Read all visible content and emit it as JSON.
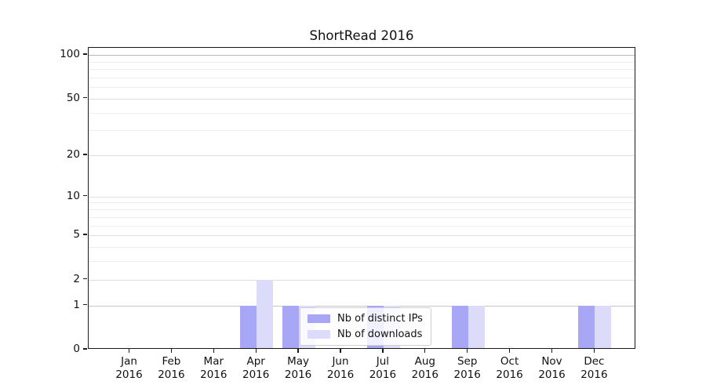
{
  "title": "ShortRead 2016",
  "colors": {
    "distinct_ips": "#a7a7f5",
    "downloads": "#dcdcfa",
    "grid_minor": "#eeeeee",
    "grid_major": "#dedede",
    "grid_unit_line": "#c4c4c4",
    "grid_top_line": "#b8b8b8",
    "axis": "#1a1a1a"
  },
  "legend": {
    "items": [
      {
        "label": "Nb of distinct IPs",
        "color_key": "distinct_ips"
      },
      {
        "label": "Nb of downloads",
        "color_key": "downloads"
      }
    ]
  },
  "axes": {
    "y_major_ticks": [
      {
        "label": "100",
        "value": 100
      },
      {
        "label": "50",
        "value": 50
      },
      {
        "label": "20",
        "value": 20
      },
      {
        "label": "10",
        "value": 10
      },
      {
        "label": "5",
        "value": 5
      },
      {
        "label": "2",
        "value": 2
      },
      {
        "label": "1",
        "value": 1
      },
      {
        "label": "0",
        "value": 0
      }
    ],
    "y_minor_values": [
      3,
      4,
      6,
      7,
      8,
      9,
      30,
      40,
      60,
      70,
      80,
      90
    ],
    "x_ticks": [
      {
        "month": "Jan",
        "year": "2016"
      },
      {
        "month": "Feb",
        "year": "2016"
      },
      {
        "month": "Mar",
        "year": "2016"
      },
      {
        "month": "Apr",
        "year": "2016"
      },
      {
        "month": "May",
        "year": "2016"
      },
      {
        "month": "Jun",
        "year": "2016"
      },
      {
        "month": "Jul",
        "year": "2016"
      },
      {
        "month": "Aug",
        "year": "2016"
      },
      {
        "month": "Sep",
        "year": "2016"
      },
      {
        "month": "Oct",
        "year": "2016"
      },
      {
        "month": "Nov",
        "year": "2016"
      },
      {
        "month": "Dec",
        "year": "2016"
      }
    ]
  },
  "chart_data": {
    "type": "bar",
    "title": "ShortRead 2016",
    "categories": [
      "Jan 2016",
      "Feb 2016",
      "Mar 2016",
      "Apr 2016",
      "May 2016",
      "Jun 2016",
      "Jul 2016",
      "Aug 2016",
      "Sep 2016",
      "Oct 2016",
      "Nov 2016",
      "Dec 2016"
    ],
    "series": [
      {
        "name": "Nb of distinct IPs",
        "color_key": "distinct_ips",
        "values": [
          0,
          0,
          0,
          1,
          1,
          0,
          1,
          0,
          1,
          0,
          0,
          1
        ]
      },
      {
        "name": "Nb of downloads",
        "color_key": "downloads",
        "values": [
          0,
          0,
          0,
          2,
          1,
          0,
          1,
          0,
          1,
          0,
          0,
          1
        ]
      }
    ],
    "xlabel": "",
    "ylabel": "",
    "yscale": "log1p",
    "y_ticks": [
      0,
      1,
      2,
      5,
      10,
      20,
      50,
      100
    ],
    "ylim": [
      0,
      112
    ],
    "grid": "on",
    "legend_position": "lower-center-inside"
  }
}
